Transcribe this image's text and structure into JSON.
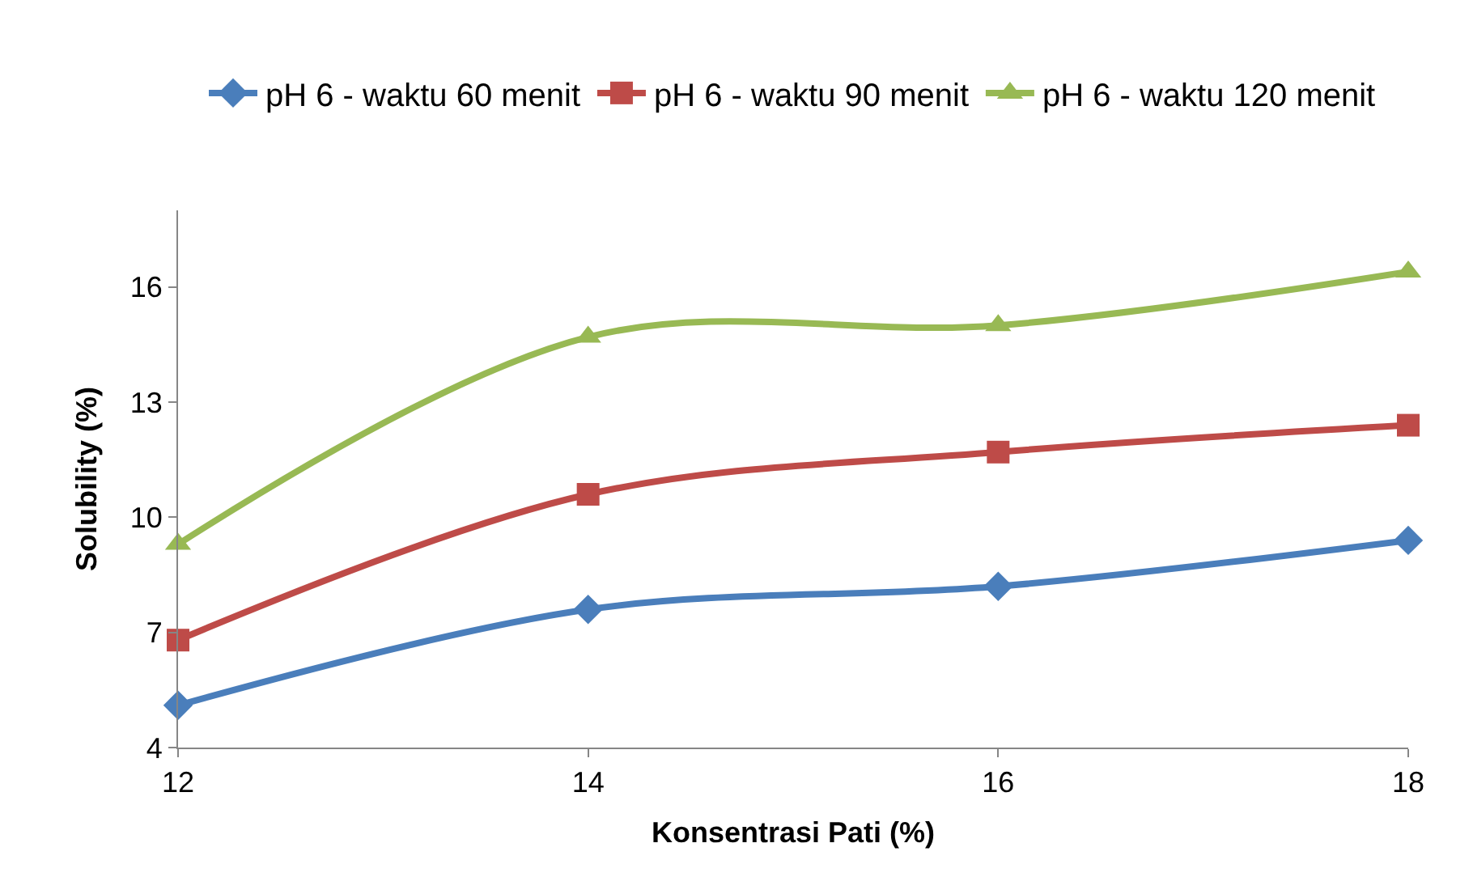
{
  "chart_data": {
    "type": "line",
    "xlabel": "Konsentrasi Pati (%)",
    "ylabel": "Solubility (%)",
    "x": [
      12,
      14,
      16,
      18
    ],
    "series": [
      {
        "name": "pH 6 - waktu 60 menit",
        "color": "#4a7ebb",
        "marker": "diamond",
        "values": [
          5.1,
          7.6,
          8.2,
          9.4
        ]
      },
      {
        "name": "pH 6 - waktu 90 menit",
        "color": "#be4b48",
        "marker": "square",
        "values": [
          6.8,
          10.6,
          11.7,
          12.4
        ]
      },
      {
        "name": "pH 6 - waktu 120 menit",
        "color": "#98b954",
        "marker": "triangle",
        "values": [
          9.3,
          14.7,
          15.0,
          16.4
        ]
      }
    ],
    "xlim": [
      12,
      18
    ],
    "xticks": [
      12,
      14,
      16,
      18
    ],
    "ylim": [
      4,
      18
    ],
    "yticks": [
      4,
      7,
      10,
      13,
      16
    ],
    "legend": "top",
    "line_style": "solid"
  }
}
